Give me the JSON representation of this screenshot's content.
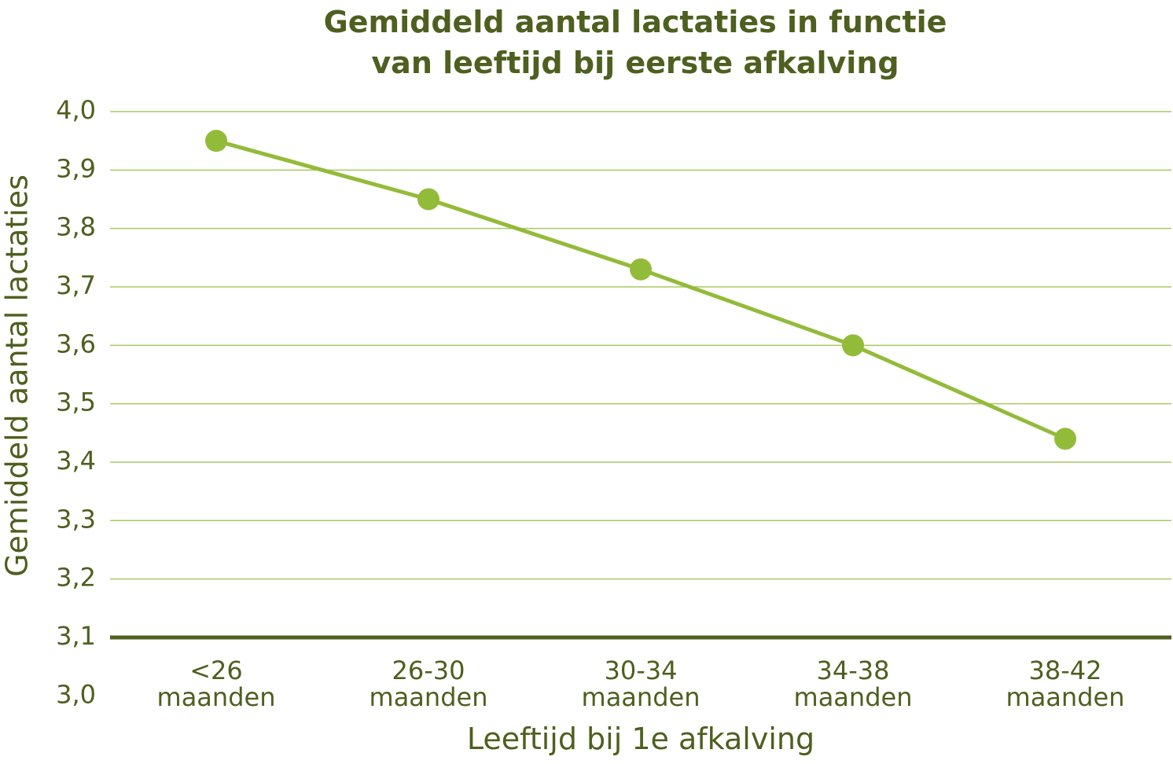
{
  "chart_data": {
    "type": "line",
    "title": "Gemiddeld aantal lactaties in functie\nvan leeftijd bij eerste afkalving",
    "x_label": "Leeftijd bij 1e afkalving",
    "y_label": "Gemiddeld aantal lactaties",
    "categories": [
      "<26\nmaanden",
      "26-30\nmaanden",
      "30-34\nmaanden",
      "34-38\nmaanden",
      "38-42\nmaanden"
    ],
    "series": [
      {
        "name": "Gemiddeld aantal lactaties",
        "color": "#93bb3a",
        "values": [
          3.95,
          3.85,
          3.73,
          3.6,
          3.44
        ]
      }
    ],
    "ylim": [
      3.0,
      4.0
    ],
    "yticks": [
      {
        "value": 3.0,
        "label": "3,0"
      },
      {
        "value": 3.1,
        "label": "3,1"
      },
      {
        "value": 3.2,
        "label": "3,2"
      },
      {
        "value": 3.3,
        "label": "3,3"
      },
      {
        "value": 3.4,
        "label": "3,4"
      },
      {
        "value": 3.5,
        "label": "3,5"
      },
      {
        "value": 3.6,
        "label": "3,6"
      },
      {
        "value": 3.7,
        "label": "3,7"
      },
      {
        "value": 3.8,
        "label": "3,8"
      },
      {
        "value": 3.9,
        "label": "3,9"
      },
      {
        "value": 4.0,
        "label": "4,0"
      }
    ],
    "baseline": 3.1,
    "grid": true,
    "grid_color": "#a8c860",
    "baseline_color": "#4e5f1f",
    "text_color": "#4e5f1f"
  }
}
